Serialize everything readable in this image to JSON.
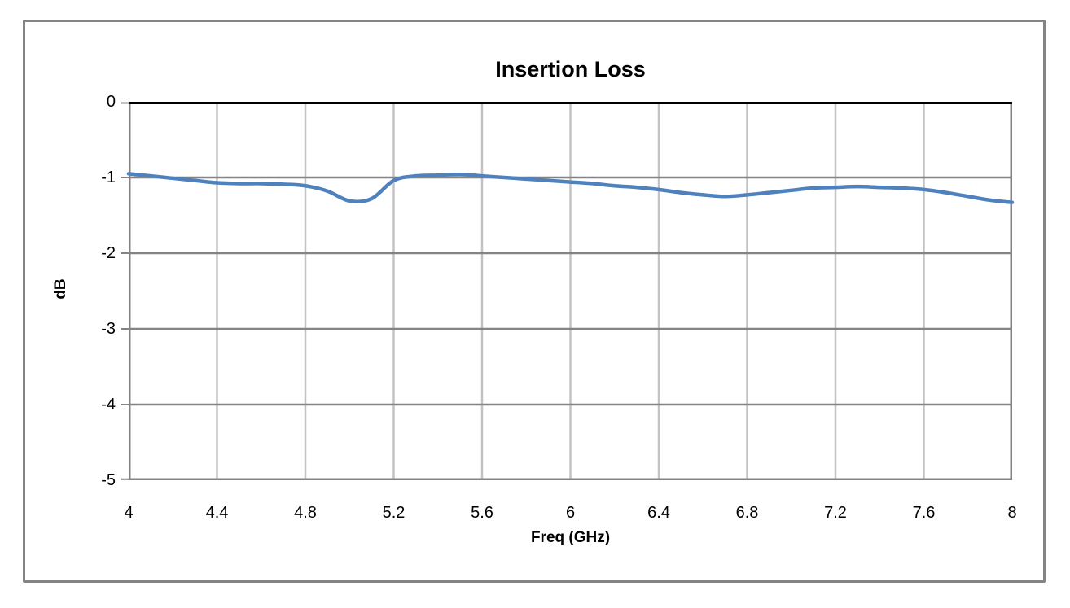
{
  "chart_data": {
    "type": "line",
    "title": "Insertion Loss",
    "xlabel": "Freq (GHz)",
    "ylabel": "dB",
    "xlim": [
      4,
      8
    ],
    "ylim": [
      -5,
      0
    ],
    "x_ticks": [
      4,
      4.4,
      4.8,
      5.2,
      5.6,
      6,
      6.4,
      6.8,
      7.2,
      7.6,
      8
    ],
    "y_ticks": [
      0,
      -1,
      -2,
      -3,
      -4,
      -5
    ],
    "grid": true,
    "legend": "none",
    "colors": {
      "line": "#4F81BD",
      "axis": "#848484",
      "minor_grid": "#C3C3C3",
      "zero_line": "#000000",
      "border": "#848484",
      "background": "#FFFFFF"
    },
    "series": [
      {
        "points": [
          [
            4.0,
            -0.95
          ],
          [
            4.1,
            -0.98
          ],
          [
            4.2,
            -1.01
          ],
          [
            4.3,
            -1.04
          ],
          [
            4.4,
            -1.07
          ],
          [
            4.5,
            -1.08
          ],
          [
            4.6,
            -1.08
          ],
          [
            4.7,
            -1.09
          ],
          [
            4.8,
            -1.11
          ],
          [
            4.9,
            -1.18
          ],
          [
            5.0,
            -1.31
          ],
          [
            5.1,
            -1.28
          ],
          [
            5.2,
            -1.04
          ],
          [
            5.3,
            -0.98
          ],
          [
            5.4,
            -0.97
          ],
          [
            5.5,
            -0.96
          ],
          [
            5.6,
            -0.98
          ],
          [
            5.7,
            -1.0
          ],
          [
            5.8,
            -1.02
          ],
          [
            5.9,
            -1.04
          ],
          [
            6.0,
            -1.06
          ],
          [
            6.1,
            -1.08
          ],
          [
            6.2,
            -1.11
          ],
          [
            6.3,
            -1.13
          ],
          [
            6.4,
            -1.16
          ],
          [
            6.5,
            -1.2
          ],
          [
            6.6,
            -1.23
          ],
          [
            6.7,
            -1.25
          ],
          [
            6.8,
            -1.23
          ],
          [
            6.9,
            -1.2
          ],
          [
            7.0,
            -1.17
          ],
          [
            7.1,
            -1.14
          ],
          [
            7.2,
            -1.13
          ],
          [
            7.3,
            -1.12
          ],
          [
            7.4,
            -1.13
          ],
          [
            7.5,
            -1.14
          ],
          [
            7.6,
            -1.16
          ],
          [
            7.7,
            -1.2
          ],
          [
            7.8,
            -1.25
          ],
          [
            7.9,
            -1.3
          ],
          [
            8.0,
            -1.33
          ]
        ]
      }
    ]
  }
}
